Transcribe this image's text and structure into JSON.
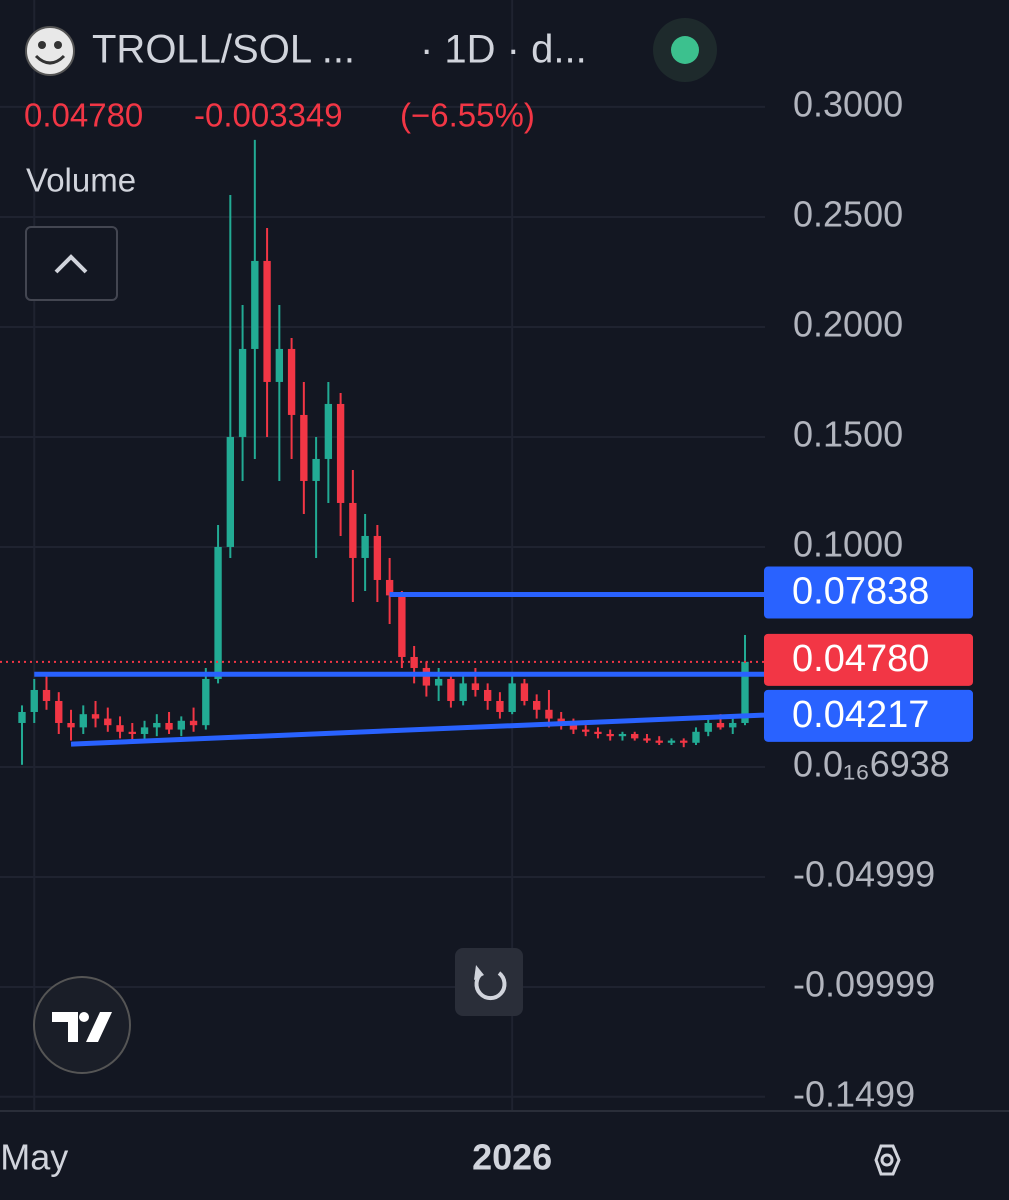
{
  "chart_data": {
    "type": "candlestick",
    "symbol": "TROLL/SOL ...",
    "interval": "· 1D · d...",
    "last_price": {
      "value": 0.0478,
      "label": "0.04780"
    },
    "change": "-0.003349",
    "change_pct": "(−6.55%)",
    "volume_label": "Volume",
    "categories": [
      null,
      "May",
      null,
      null,
      null,
      null,
      null,
      null,
      null,
      null,
      null,
      null,
      null,
      null,
      null,
      null,
      null,
      null,
      null,
      null,
      null,
      null,
      null,
      null,
      null,
      null,
      null,
      null,
      null,
      null,
      null,
      null,
      null,
      null,
      null,
      null,
      null,
      null,
      null,
      null,
      "2026",
      null,
      null,
      null,
      null,
      null,
      null,
      null,
      null,
      null,
      null,
      null,
      null,
      null,
      null,
      null,
      null,
      null,
      null,
      null
    ],
    "open": [
      0.02,
      0.025,
      0.035,
      0.03,
      0.02,
      0.018,
      0.024,
      0.022,
      0.019,
      0.016,
      0.015,
      0.018,
      0.02,
      0.017,
      0.021,
      0.019,
      0.04,
      0.1,
      0.15,
      0.19,
      0.23,
      0.175,
      0.19,
      0.16,
      0.13,
      0.14,
      0.165,
      0.12,
      0.095,
      0.105,
      0.085,
      0.078,
      0.05,
      0.045,
      0.037,
      0.04,
      0.03,
      0.038,
      0.035,
      0.03,
      0.025,
      0.038,
      0.03,
      0.026,
      0.022,
      0.02,
      0.017,
      0.016,
      0.015,
      0.014,
      0.015,
      0.013,
      0.012,
      0.011,
      0.012,
      0.011,
      0.016,
      0.02,
      0.018,
      0.02
    ],
    "high": [
      0.028,
      0.04,
      0.042,
      0.034,
      0.026,
      0.028,
      0.03,
      0.027,
      0.023,
      0.02,
      0.021,
      0.024,
      0.025,
      0.023,
      0.027,
      0.045,
      0.11,
      0.26,
      0.21,
      0.285,
      0.245,
      0.21,
      0.195,
      0.175,
      0.15,
      0.175,
      0.17,
      0.135,
      0.115,
      0.11,
      0.095,
      0.08,
      0.055,
      0.048,
      0.045,
      0.043,
      0.042,
      0.045,
      0.038,
      0.034,
      0.042,
      0.04,
      0.033,
      0.035,
      0.025,
      0.022,
      0.019,
      0.018,
      0.017,
      0.016,
      0.016,
      0.015,
      0.014,
      0.013,
      0.013,
      0.018,
      0.023,
      0.024,
      0.022,
      0.06
    ],
    "low": [
      0.001,
      0.02,
      0.026,
      0.015,
      0.012,
      0.015,
      0.018,
      0.016,
      0.013,
      0.011,
      0.012,
      0.014,
      0.015,
      0.014,
      0.016,
      0.017,
      0.038,
      0.095,
      0.13,
      0.14,
      0.15,
      0.13,
      0.14,
      0.115,
      0.095,
      0.12,
      0.105,
      0.075,
      0.08,
      0.075,
      0.065,
      0.045,
      0.038,
      0.032,
      0.03,
      0.027,
      0.028,
      0.032,
      0.026,
      0.022,
      0.024,
      0.028,
      0.022,
      0.018,
      0.017,
      0.015,
      0.014,
      0.013,
      0.012,
      0.012,
      0.012,
      0.011,
      0.01,
      0.01,
      0.009,
      0.01,
      0.014,
      0.017,
      0.015,
      0.019
    ],
    "close": [
      0.025,
      0.035,
      0.03,
      0.02,
      0.018,
      0.024,
      0.022,
      0.019,
      0.016,
      0.015,
      0.018,
      0.02,
      0.017,
      0.021,
      0.019,
      0.04,
      0.1,
      0.15,
      0.19,
      0.23,
      0.175,
      0.19,
      0.16,
      0.13,
      0.14,
      0.165,
      0.12,
      0.095,
      0.105,
      0.085,
      0.078,
      0.05,
      0.045,
      0.037,
      0.04,
      0.03,
      0.038,
      0.035,
      0.03,
      0.025,
      0.038,
      0.03,
      0.026,
      0.022,
      0.02,
      0.017,
      0.016,
      0.015,
      0.014,
      0.015,
      0.013,
      0.012,
      0.011,
      0.012,
      0.011,
      0.016,
      0.02,
      0.018,
      0.02,
      0.0478
    ],
    "up_color": "#22ab94",
    "down_color": "#f23645",
    "price_lines": [
      {
        "value": 0.07838,
        "start": 30,
        "color": "#2962ff"
      },
      {
        "value": 0.04217,
        "start": 1,
        "color": "#2962ff"
      }
    ],
    "trendline": {
      "start": 4,
      "values": [
        0.0104,
        0.0236
      ],
      "color": "#2962ff"
    },
    "ylim": [
      -0.1559,
      0.3486
    ],
    "yticks": [
      {
        "value": 0.3,
        "label": "0.3000"
      },
      {
        "value": 0.25,
        "label": "0.2500"
      },
      {
        "value": 0.2,
        "label": "0.2000"
      },
      {
        "value": 0.15,
        "label": "0.1500"
      },
      {
        "value": 0.1,
        "label": "0.1000"
      },
      {
        "value": 6.938e-17,
        "label": "0.0₁₆6938"
      },
      -0.04999,
      -0.09999,
      -0.1499
    ],
    "grid": true
  }
}
